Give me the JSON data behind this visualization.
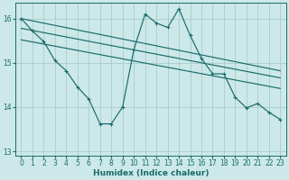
{
  "xlabel": "Humidex (Indice chaleur)",
  "ylabel": "",
  "bg_color": "#cce8e8",
  "grid_color": "#aacccc",
  "line_color": "#1a6b6b",
  "xlim": [
    -0.5,
    23.5
  ],
  "ylim": [
    12.9,
    16.35
  ],
  "yticks": [
    13,
    14,
    15,
    16
  ],
  "xticks": [
    0,
    1,
    2,
    3,
    4,
    5,
    6,
    7,
    8,
    9,
    10,
    11,
    12,
    13,
    14,
    15,
    16,
    17,
    18,
    19,
    20,
    21,
    22,
    23
  ],
  "series1_x": [
    0,
    1,
    2,
    3,
    4,
    5,
    6,
    7,
    8,
    9,
    10,
    11,
    12,
    13,
    14,
    15,
    16,
    17,
    18,
    19,
    20,
    21,
    22,
    23
  ],
  "series1_y": [
    16.0,
    15.72,
    15.48,
    15.05,
    14.82,
    14.45,
    14.18,
    13.62,
    13.62,
    14.0,
    15.3,
    16.1,
    15.9,
    15.8,
    16.22,
    15.62,
    15.1,
    14.75,
    14.75,
    14.22,
    13.98,
    14.08,
    13.88,
    13.72
  ],
  "series2_x": [
    0,
    23
  ],
  "series2_y": [
    16.0,
    14.82
  ],
  "series3_x": [
    0,
    23
  ],
  "series3_y": [
    15.78,
    14.66
  ],
  "series4_x": [
    0,
    23
  ],
  "series4_y": [
    15.52,
    14.42
  ]
}
